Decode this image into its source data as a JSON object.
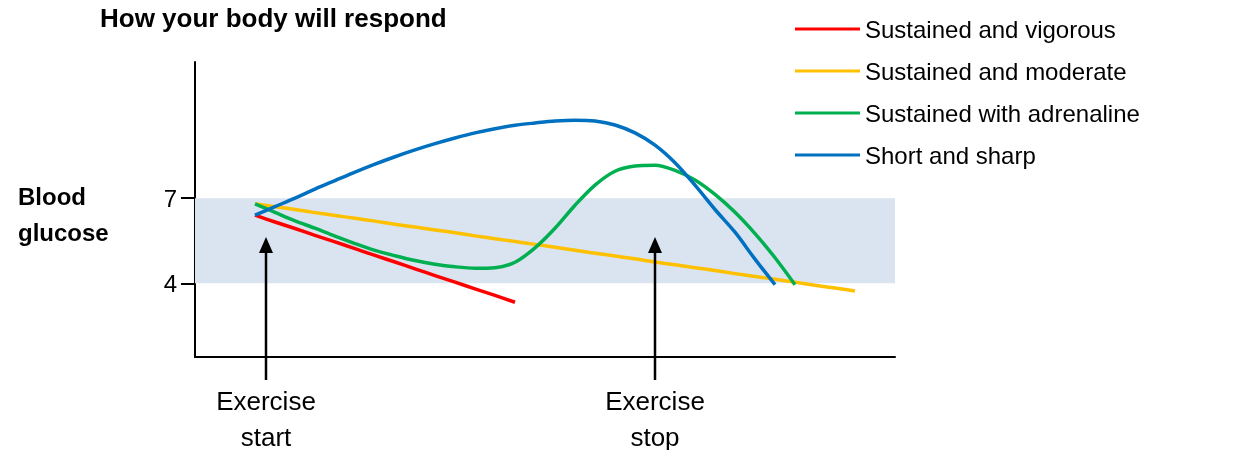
{
  "chart_data": {
    "type": "line",
    "title": "How your body will respond",
    "ylabel": "Blood glucose",
    "categories": [
      null,
      null,
      null,
      null,
      null,
      null,
      null,
      null,
      null,
      null,
      null,
      null,
      null,
      null,
      null,
      null,
      null,
      null,
      null,
      null,
      null,
      null,
      null,
      null,
      null,
      null,
      null,
      null,
      null,
      null,
      null,
      null,
      null,
      null,
      null,
      null
    ],
    "series": [
      {
        "name": "Sustained and vigorous",
        "color": "#ff0000",
        "values": [
          null,
          null,
          null,
          6.4,
          6.16,
          5.93,
          5.69,
          5.46,
          5.22,
          4.98,
          4.75,
          4.51,
          4.27,
          4.04,
          3.8,
          3.57,
          3.33,
          null,
          null,
          null,
          null,
          null,
          null,
          null,
          null,
          null,
          null,
          null,
          null,
          null,
          null,
          null,
          null,
          null,
          null,
          null
        ]
      },
      {
        "name": "Sustained and moderate",
        "color": "#ffc000",
        "values": [
          null,
          null,
          null,
          6.8,
          6.7,
          6.6,
          6.49,
          6.39,
          6.29,
          6.19,
          6.08,
          5.98,
          5.88,
          5.78,
          5.67,
          5.57,
          5.47,
          5.37,
          5.27,
          5.16,
          5.06,
          4.96,
          4.86,
          4.75,
          4.65,
          4.55,
          4.45,
          4.34,
          4.24,
          4.14,
          4.04,
          3.93,
          3.83,
          3.73,
          null,
          null
        ]
      },
      {
        "name": "Sustained with adrenaline",
        "color": "#00b050",
        "values": [
          null,
          null,
          null,
          6.8,
          6.5,
          6.2,
          5.94,
          5.66,
          5.4,
          5.16,
          4.97,
          4.8,
          4.67,
          4.58,
          4.53,
          4.55,
          4.74,
          5.25,
          5.94,
          6.75,
          7.46,
          7.95,
          8.13,
          8.16,
          7.98,
          7.64,
          7.13,
          6.5,
          5.75,
          4.9,
          3.95,
          null,
          null,
          null,
          null,
          null
        ]
      },
      {
        "name": "Short and sharp",
        "color": "#0070c0",
        "values": [
          null,
          null,
          null,
          6.4,
          6.7,
          7.0,
          7.32,
          7.62,
          7.92,
          8.2,
          8.46,
          8.7,
          8.92,
          9.12,
          9.3,
          9.45,
          9.57,
          9.65,
          9.72,
          9.75,
          9.72,
          9.58,
          9.3,
          8.87,
          8.25,
          7.46,
          6.6,
          5.8,
          4.85,
          3.95,
          null,
          null,
          null,
          null,
          null,
          null
        ]
      }
    ],
    "ylim": [
      1.4,
      11.8
    ],
    "yticks": [
      4,
      7
    ],
    "grid": false,
    "legend": "top right",
    "marker": "none",
    "line_style": "solid",
    "bands": [
      {
        "axis": "y",
        "from": 4,
        "to": 7,
        "color": "#dae3f0"
      }
    ],
    "annotations": [
      "Exercise start",
      "Exercise stop"
    ]
  }
}
